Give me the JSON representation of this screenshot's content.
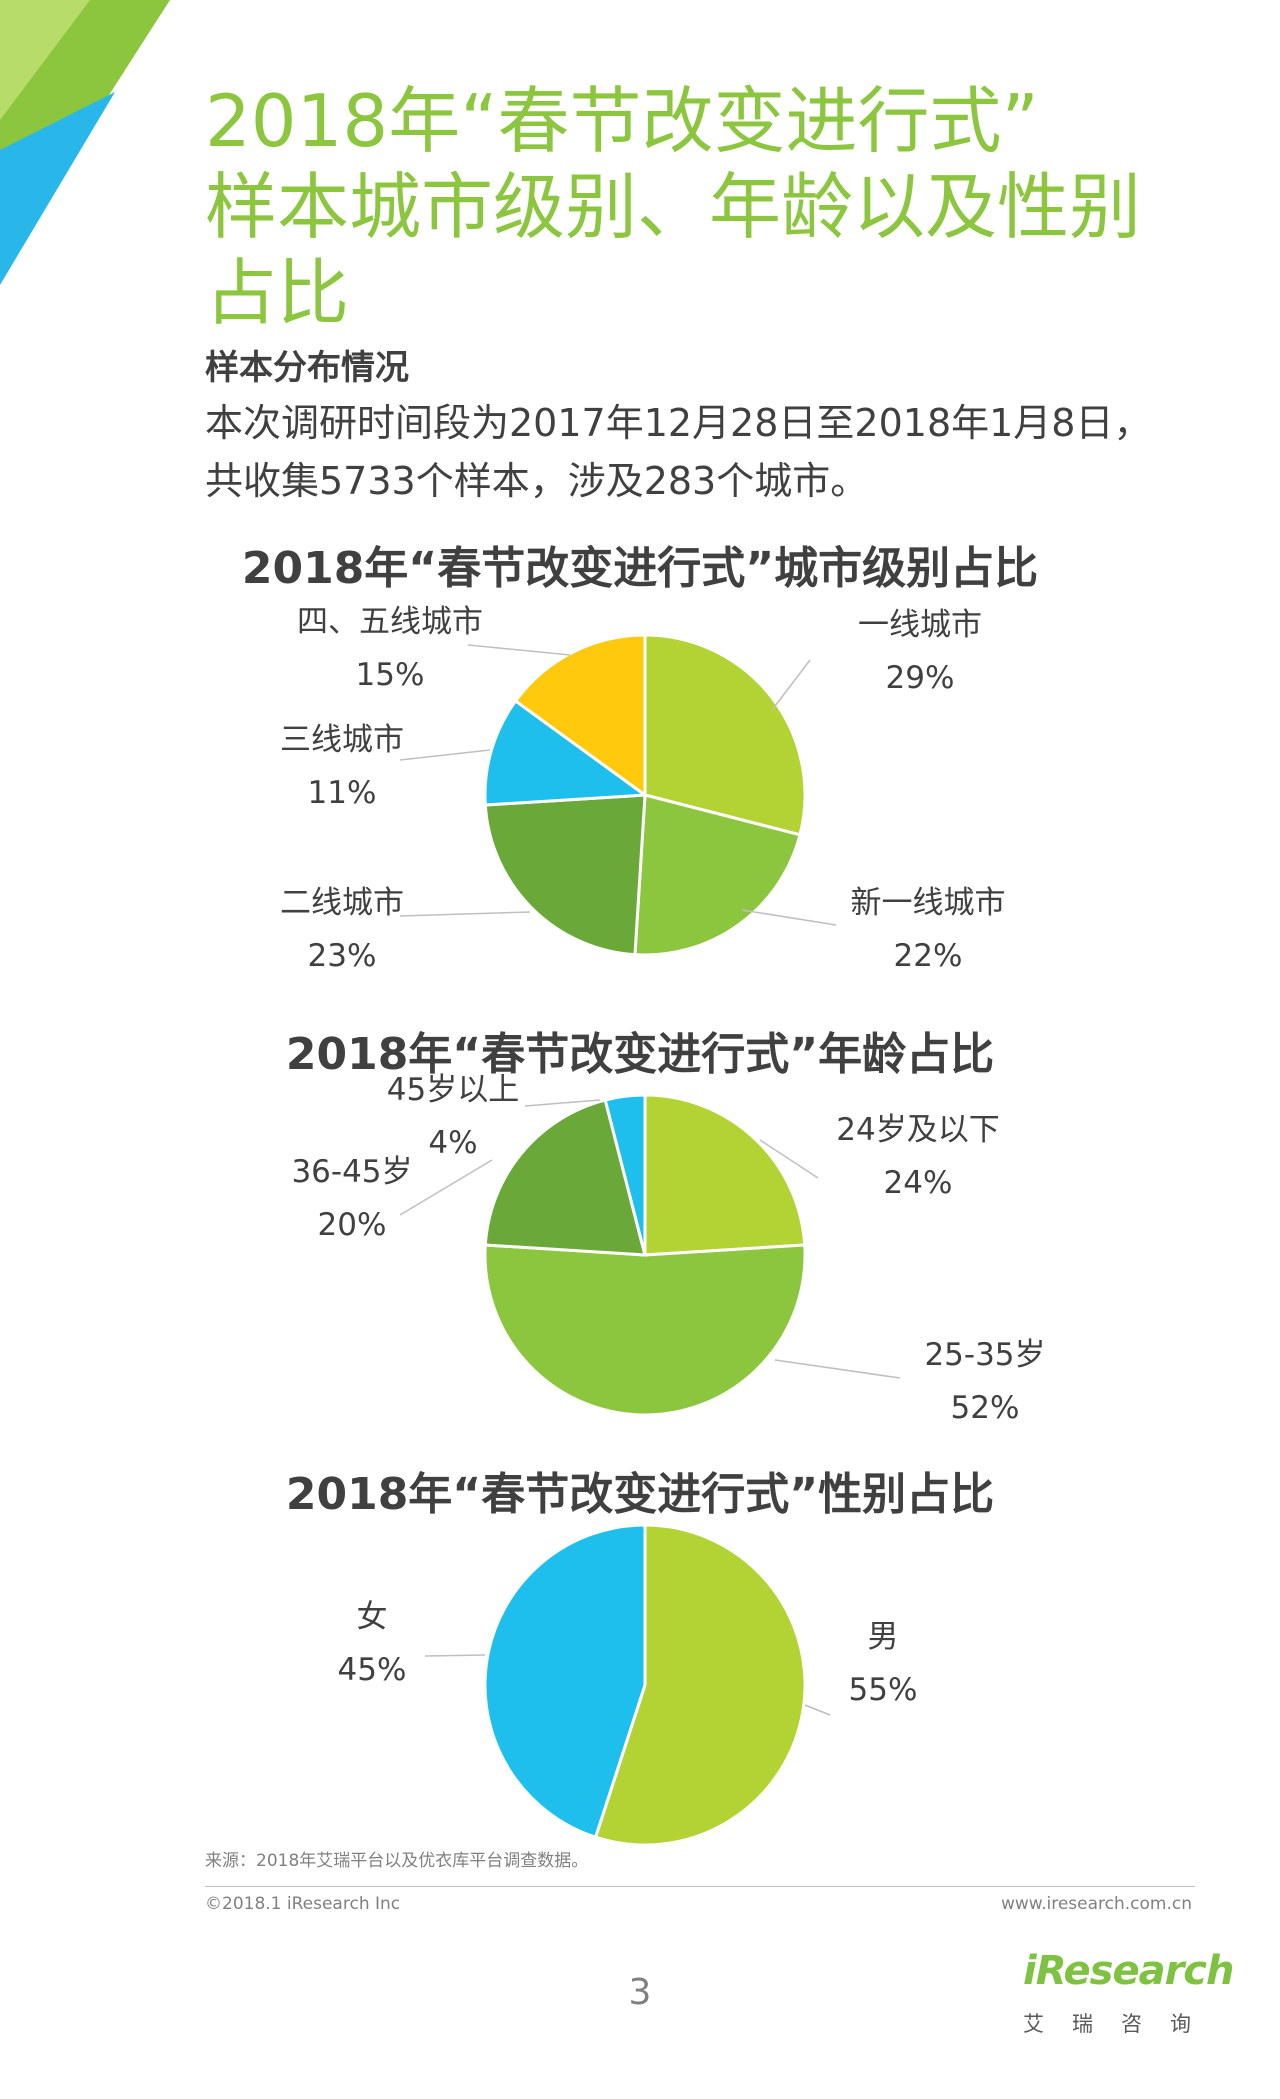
{
  "title_lines": [
    "2018年“春节改变进行式”",
    "样本城市级别、年龄以及性别",
    "占比"
  ],
  "section_heading": "样本分布情况",
  "intro_lines": [
    "本次调研时间段为2017年12月28日至2018年1月8日，",
    "共收集5733个样本，涉及283个城市。"
  ],
  "source": "来源：2018年艾瑞平台以及优衣库平台调查数据。",
  "copyright": "©2018.1 iResearch Inc",
  "website": "www.iresearch.com.cn",
  "page_number": "3",
  "logo": {
    "name": "iResearch",
    "sub": "艾瑞咨询"
  },
  "colors": {
    "title_green": "#8cc63f",
    "deco_green": "#8cc63f",
    "deco_blue": "#29b6e8",
    "logo_green": "#7fc241"
  },
  "chart_data": [
    {
      "type": "pie",
      "title": "2018年“春节改变进行式”城市级别占比",
      "slices": [
        {
          "name": "一线城市",
          "value": 29,
          "label": "29%",
          "color": "#b3d334"
        },
        {
          "name": "新一线城市",
          "value": 22,
          "label": "22%",
          "color": "#8cc63f"
        },
        {
          "name": "二线城市",
          "value": 23,
          "label": "23%",
          "color": "#6aa839"
        },
        {
          "name": "三线城市",
          "value": 11,
          "label": "11%",
          "color": "#1ebfec"
        },
        {
          "name": "四、五线城市",
          "value": 15,
          "label": "15%",
          "color": "#ffc90e"
        }
      ]
    },
    {
      "type": "pie",
      "title": "2018年“春节改变进行式”年龄占比",
      "slices": [
        {
          "name": "24岁及以下",
          "value": 24,
          "label": "24%",
          "color": "#b3d334"
        },
        {
          "name": "25-35岁",
          "value": 52,
          "label": "52%",
          "color": "#8cc63f"
        },
        {
          "name": "36-45岁",
          "value": 20,
          "label": "20%",
          "color": "#6aa839"
        },
        {
          "name": "45岁以上",
          "value": 4,
          "label": "4%",
          "color": "#1ebfec"
        }
      ]
    },
    {
      "type": "pie",
      "title": "2018年“春节改变进行式”性别占比",
      "slices": [
        {
          "name": "男",
          "value": 55,
          "label": "55%",
          "color": "#b3d334"
        },
        {
          "name": "女",
          "value": 45,
          "label": "45%",
          "color": "#1ebfec"
        }
      ]
    }
  ]
}
